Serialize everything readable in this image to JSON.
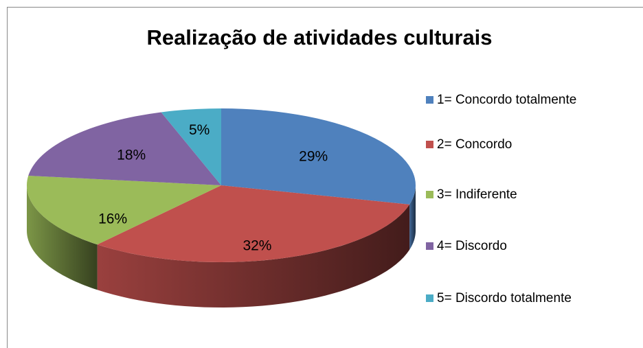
{
  "chart_data": {
    "type": "pie3d",
    "title": "Realização de atividades culturais",
    "categories": [
      "1= Concordo totalmente",
      "2= Concordo",
      "3= Indiferente",
      "4= Discordo",
      "5= Discordo totalmente"
    ],
    "values": [
      29,
      32,
      16,
      18,
      5
    ],
    "value_labels": [
      "29%",
      "32%",
      "16%",
      "18%",
      "5%"
    ],
    "colors": [
      "#4f81bd",
      "#c0504d",
      "#9bbb59",
      "#8064a2",
      "#4bacc6"
    ],
    "legend": "right"
  }
}
